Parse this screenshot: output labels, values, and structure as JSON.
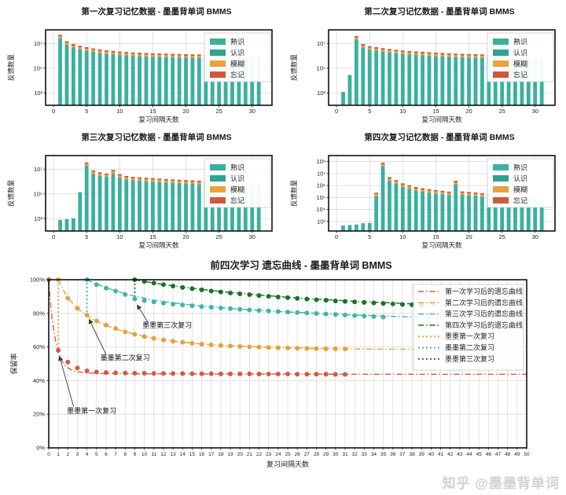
{
  "watermark": "知乎 @墨墨背单词",
  "colors": {
    "familiar": "#3ab09e",
    "recognize": "#2fa38f",
    "fuzzy": "#e8a33d",
    "forget": "#d0583c",
    "curve1": "#cf5b45",
    "curve2": "#e2a23c",
    "curve3": "#43b5a4",
    "curve4": "#1e6f2e",
    "grid": "#d9d9d9",
    "axis": "#111111"
  },
  "chart_data": [
    {
      "type": "bar",
      "title": "第一次复习记忆数据 - 墨墨背单词 BMMS",
      "xlabel": "复习间隔天数",
      "ylabel": "反馈数量",
      "legend": [
        "熟识",
        "认识",
        "模糊",
        "忘记"
      ],
      "xlim": [
        -1.2,
        33
      ],
      "xticks": [
        0,
        5,
        10,
        15,
        20,
        25,
        30
      ],
      "ylim_log": [
        2,
        8.1
      ],
      "yticks": [
        "10⁷",
        "10⁵",
        "10³"
      ],
      "ytick_logs": [
        7,
        5,
        3
      ],
      "days_start": 1,
      "values": [
        50000000,
        15000000,
        9000000,
        6500000,
        5000000,
        4000000,
        3300000,
        2800000,
        2500000,
        2200000,
        2050000,
        1900000,
        1800000,
        1700000,
        1620000,
        1550000,
        1500000,
        1450000,
        1400000,
        1360000,
        1320000,
        1290000,
        1260000,
        1230000,
        1200000,
        1000000,
        700000,
        700000,
        750000,
        780000,
        800000
      ]
    },
    {
      "type": "bar",
      "title": "第二次复习记忆数据 - 墨墨背单词 BMMS",
      "xlabel": "复习间隔天数",
      "ylabel": "反馈数量",
      "legend": [
        "熟识",
        "认识",
        "模糊",
        "忘记"
      ],
      "xlim": [
        -1.2,
        33
      ],
      "xticks": [
        0,
        5,
        10,
        15,
        20,
        25,
        30
      ],
      "ylim_log": [
        2,
        8.1
      ],
      "yticks": [
        "10⁷",
        "10⁵",
        "10³"
      ],
      "ytick_logs": [
        7,
        5,
        3
      ],
      "days_start": 1,
      "values": [
        1200,
        28000,
        40000000,
        9000000,
        6000000,
        5000000,
        4200000,
        3600000,
        3100000,
        2700000,
        2450000,
        2250000,
        2100000,
        1950000,
        1820000,
        1700000,
        1600000,
        1520000,
        1450000,
        1400000,
        1350000,
        1300000,
        1250000,
        1150000,
        1050000,
        900000,
        600000,
        600000,
        600000,
        600000,
        600000
      ]
    },
    {
      "type": "bar",
      "title": "第三次复习记忆数据 - 墨墨背单词 BMMS",
      "xlabel": "复习间隔天数",
      "ylabel": "反馈数量",
      "legend": [
        "熟识",
        "认识",
        "模糊",
        "忘记"
      ],
      "xlim": [
        -1.2,
        33
      ],
      "xticks": [
        0,
        5,
        10,
        15,
        20,
        25,
        30
      ],
      "ylim_log": [
        2,
        8.1
      ],
      "yticks": [
        "10⁷",
        "10⁵",
        "10³"
      ],
      "ytick_logs": [
        7,
        5,
        3
      ],
      "days_start": 1,
      "values": [
        800,
        900,
        1050,
        140000,
        35000000,
        8000000,
        5500000,
        4500000,
        8500000,
        4000000,
        2800000,
        2400000,
        2200000,
        2050000,
        1900000,
        1750000,
        1600000,
        1500000,
        1400000,
        1320000,
        1250000,
        1180000,
        1120000,
        1060000,
        1000000,
        950000,
        600000,
        600000,
        600000,
        600000,
        550000
      ]
    },
    {
      "type": "bar",
      "title": "第四次复习记忆数据 - 墨墨背单词 BMMS",
      "xlabel": "复习间隔天数",
      "ylabel": "反馈数量",
      "legend": [
        "熟识",
        "认识",
        "模糊",
        "忘记"
      ],
      "xlim": [
        -1.2,
        33
      ],
      "xticks": [
        0,
        5,
        10,
        15,
        20,
        25,
        30
      ],
      "ylim_log": [
        2.2,
        8.5
      ],
      "yticks": [
        "10⁸",
        "10⁷",
        "10⁶",
        "10⁵",
        "10⁴",
        "10³"
      ],
      "ytick_logs": [
        8,
        7,
        6,
        5,
        4,
        3
      ],
      "days_start": 1,
      "values": [
        450,
        500,
        550,
        700,
        750,
        250000,
        80000000,
        5000000,
        2800000,
        1500000,
        1050000,
        750000,
        600000,
        500000,
        420000,
        360000,
        310000,
        2500000,
        320000,
        290000,
        260000,
        230000,
        210000,
        190000,
        170000,
        150000,
        80000,
        80000,
        80000,
        80000,
        80000
      ]
    },
    {
      "type": "line",
      "title": "前四次学习 遗忘曲线 - 墨墨背单词 BMMS",
      "xlabel": "复习间隔天数",
      "ylabel": "保留率",
      "xlim": [
        0,
        50
      ],
      "xtick_step": 1,
      "ylim": [
        0,
        100
      ],
      "yticks": [
        0,
        20,
        40,
        60,
        80,
        100
      ],
      "ytick_suffix": "%",
      "legend": [
        {
          "label": "第一次学习后的遗忘曲线",
          "style": "dashdot",
          "color": "curve1"
        },
        {
          "label": "第二次学习后的遗忘曲线",
          "style": "dashdot",
          "color": "curve2"
        },
        {
          "label": "第三次学习后的遗忘曲线",
          "style": "dashdot",
          "color": "curve3"
        },
        {
          "label": "第四次学习后的遗忘曲线",
          "style": "dashdot",
          "color": "curve4"
        },
        {
          "label": "墨墨第一次复习",
          "style": "dotted",
          "color": "curve2"
        },
        {
          "label": "墨墨第二次复习",
          "style": "dotted",
          "color": "curve3"
        },
        {
          "label": "墨墨第三次复习",
          "style": "dotted",
          "color": "curve4"
        }
      ],
      "series": [
        {
          "name": "第一次学习后的遗忘曲线",
          "color": "curve1",
          "style": "dashdot",
          "line": {
            "x": [
              0,
              0.2,
              0.4,
              0.7,
              1,
              1.4,
              1.8,
              2.3,
              3,
              4,
              5,
              6,
              8,
              10,
              13,
              16,
              20,
              25,
              31,
              38,
              44,
              50
            ],
            "y": [
              100,
              85,
              74.5,
              64,
              57,
              51.5,
              48.5,
              46.5,
              45.2,
              44.6,
              44.3,
              44.2,
              44.1,
              44,
              44,
              43.9,
              43.9,
              43.9,
              43.8,
              43.8,
              43.8,
              43.8
            ]
          },
          "dots_start_day": 0,
          "dots": [
            100,
            58,
            51,
            47.5,
            45.8,
            45.1,
            44.8,
            44.6,
            44.5,
            44.4,
            44.4,
            44.3,
            44.3,
            44.2,
            44.2,
            44.1,
            44.1,
            44.1,
            44,
            44,
            44,
            44,
            43.9,
            43.9,
            43.9,
            43.9,
            43.8,
            43.8,
            43.8,
            43.8,
            43.7,
            43.7
          ]
        },
        {
          "name": "第二次学习后的遗忘曲线",
          "color": "curve2",
          "style": "dashdot",
          "line": {
            "x": [
              1,
              1.5,
              2,
              2.5,
              3,
              4,
              5,
              6,
              7,
              8,
              10,
              12,
              15,
              18,
              22,
              26,
              31,
              36,
              41,
              46
            ],
            "y": [
              100,
              94,
              89.5,
              86,
              83,
              78.5,
              75.3,
              72.8,
              70.8,
              69,
              66.2,
              64.2,
              62.2,
              61,
              60,
              59.4,
              58.9,
              58.7,
              58.6,
              58.5
            ]
          },
          "dots_start_day": 1,
          "dots": [
            100,
            89,
            83,
            79,
            75.5,
            73,
            71,
            69,
            67.5,
            66.2,
            65.1,
            64.2,
            63.4,
            62.8,
            62.2,
            61.7,
            61.3,
            60.9,
            60.6,
            60.3,
            60.1,
            59.9,
            59.7,
            59.5,
            59.4,
            59.2,
            59.1,
            59,
            58.9,
            58.9,
            58.8
          ]
        },
        {
          "name": "第三次学习后的遗忘曲线",
          "color": "curve3",
          "style": "dashdot",
          "line": {
            "x": [
              4,
              4.5,
              5,
              6,
              7,
              8,
              9,
              11,
              13,
              16,
              20,
              24,
              28,
              32,
              36,
              40,
              44
            ],
            "y": [
              100,
              98.6,
              97.4,
              95.3,
              93.4,
              91.7,
              90.2,
              87.9,
              86.2,
              84.3,
              82.5,
              81.1,
              80,
              79,
              78.2,
              77.5,
              76.9
            ]
          },
          "dots_start_day": 4,
          "dots": [
            100,
            97,
            95,
            93.2,
            91.2,
            88.6,
            87.6,
            86.8,
            86.1,
            85.5,
            85,
            84.5,
            84,
            83.6,
            83.2,
            82.8,
            82.4,
            82,
            81.7,
            81.4,
            81.1,
            80.8,
            80.5,
            80.2,
            79.9,
            79.6,
            79.3,
            79,
            78.7,
            78.4,
            78.1,
            77.8
          ]
        },
        {
          "name": "第四次学习后的遗忘曲线",
          "color": "curve4",
          "style": "dashdot",
          "line": {
            "x": [
              9,
              10,
              11,
              13,
              15,
              18,
              21,
              25,
              29,
              33,
              37,
              41
            ],
            "y": [
              100,
              99,
              98,
              96.4,
              94.9,
              93,
              91.4,
              89.6,
              88.1,
              86.9,
              85.9,
              85.1
            ]
          },
          "dots_start_day": 9,
          "dots": [
            100,
            99,
            98,
            97.1,
            96.2,
            95.4,
            94.7,
            94,
            93.3,
            92.7,
            92.1,
            91.6,
            91.1,
            90.6,
            90.1,
            89.7,
            89.3,
            88.9,
            88.5,
            88.1,
            87.8,
            87.4,
            87.1,
            86.8,
            86.5,
            86.2,
            85.9,
            85.6,
            85.3,
            85.1,
            84.8
          ]
        }
      ],
      "review_markers": [
        {
          "label": "墨墨第一次复习",
          "day": 1,
          "from": 57,
          "to": 100,
          "color": "curve2"
        },
        {
          "label": "墨墨第二次复习",
          "day": 4,
          "from": 78.5,
          "to": 100,
          "color": "curve3"
        },
        {
          "label": "墨墨第三次复习",
          "day": 9,
          "from": 87.5,
          "to": 100,
          "color": "curve4"
        }
      ],
      "annotations": [
        {
          "label": "墨墨第一次复习",
          "text_x": 1.9,
          "text_y": 20.5,
          "from_x": 2.6,
          "from_y": 24.5,
          "tip_x": 1.12,
          "tip_y": 54.5
        },
        {
          "label": "墨墨第二次复习",
          "text_x": 5.4,
          "text_y": 52,
          "from_x": 6.0,
          "from_y": 55.5,
          "tip_x": 4.22,
          "tip_y": 76.5
        },
        {
          "label": "墨墨第三次复习",
          "text_x": 9.8,
          "text_y": 71.5,
          "from_x": 10.4,
          "from_y": 74.5,
          "tip_x": 9.25,
          "tip_y": 85
        }
      ]
    }
  ]
}
